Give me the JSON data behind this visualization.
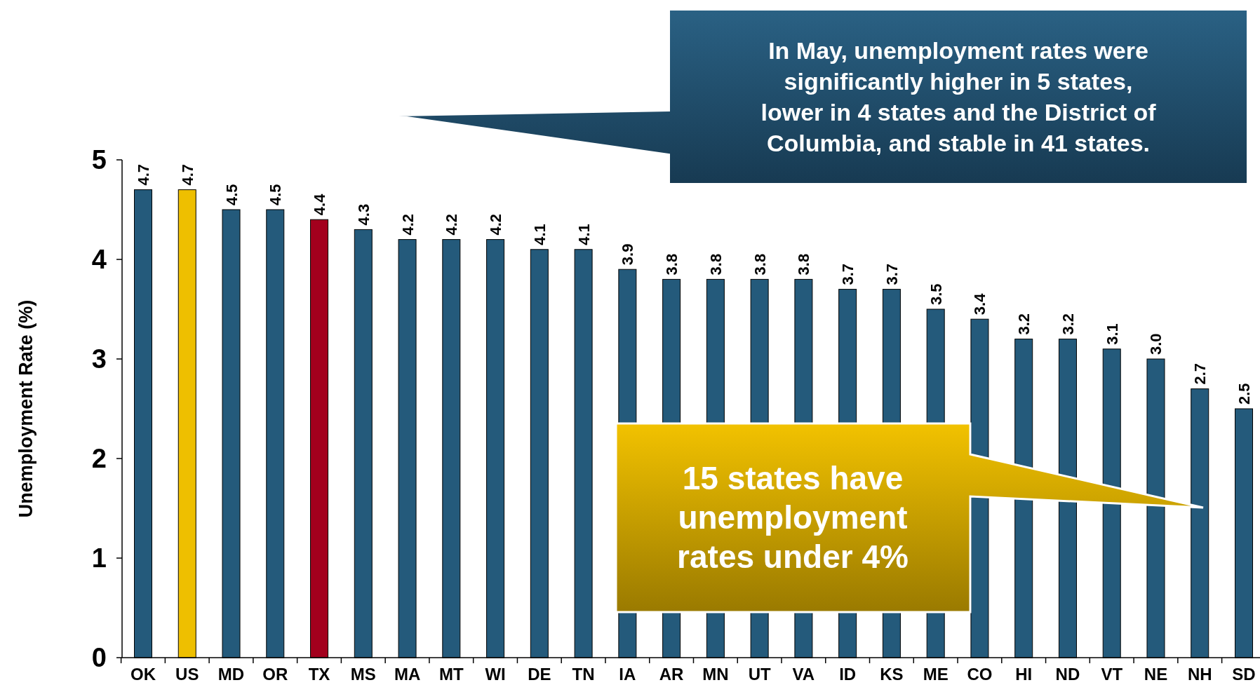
{
  "chart_data": {
    "type": "bar",
    "ylabel": "Unemployment Rate (%)",
    "categories": [
      "OK",
      "US",
      "MD",
      "OR",
      "TX",
      "MS",
      "MA",
      "MT",
      "WI",
      "DE",
      "TN",
      "IA",
      "AR",
      "MN",
      "UT",
      "VA",
      "ID",
      "KS",
      "ME",
      "CO",
      "HI",
      "ND",
      "VT",
      "NE",
      "NH",
      "SD"
    ],
    "values": [
      4.7,
      4.7,
      4.5,
      4.5,
      4.4,
      4.3,
      4.2,
      4.2,
      4.2,
      4.1,
      4.1,
      3.9,
      3.8,
      3.8,
      3.8,
      3.8,
      3.7,
      3.7,
      3.5,
      3.4,
      3.2,
      3.2,
      3.1,
      3.0,
      2.7,
      2.5
    ],
    "colors": [
      "#245a7b",
      "#eebf00",
      "#245a7b",
      "#245a7b",
      "#a3001d",
      "#245a7b",
      "#245a7b",
      "#245a7b",
      "#245a7b",
      "#245a7b",
      "#245a7b",
      "#245a7b",
      "#245a7b",
      "#245a7b",
      "#245a7b",
      "#245a7b",
      "#245a7b",
      "#245a7b",
      "#245a7b",
      "#245a7b",
      "#245a7b",
      "#245a7b",
      "#245a7b",
      "#245a7b",
      "#245a7b",
      "#245a7b"
    ],
    "value_labels": [
      "4.7",
      "4.7",
      "4.5",
      "4.5",
      "4.4",
      "4.3",
      "4.2",
      "4.2",
      "4.2",
      "4.1",
      "4.1",
      "3.9",
      "3.8",
      "3.8",
      "3.8",
      "3.8",
      "3.7",
      "3.7",
      "3.5",
      "3.4",
      "3.2",
      "3.2",
      "3.1",
      "3.0",
      "2.7",
      "2.5"
    ],
    "ylim": [
      0,
      5
    ],
    "yticks": [
      0,
      1,
      2,
      3,
      4,
      5
    ],
    "grid": false,
    "annotations": [
      "In May, unemployment rates were significantly higher in 5 states, lower in 4 states and the District of Columbia, and stable in 41 states.",
      "15 states have unemployment rates under 4%"
    ]
  }
}
